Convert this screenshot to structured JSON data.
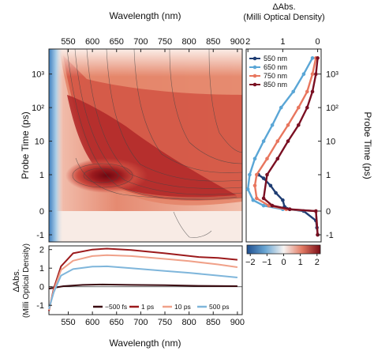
{
  "chart_data": [
    {
      "type": "heatmap",
      "xlabel": "Wavelength (nm)",
      "ylabel": "Probe Time (ps)",
      "x_ticks": [
        "550",
        "600",
        "650",
        "700",
        "750",
        "800",
        "850",
        "900"
      ],
      "x_tick_values": [
        550,
        600,
        650,
        700,
        750,
        800,
        850,
        900
      ],
      "xlim": [
        510,
        910
      ],
      "y_scale": "linear below 1 ps, log above",
      "y_ticks": [
        "-1",
        "0",
        "1",
        "10",
        "10²",
        "10³"
      ],
      "y_tick_values": [
        -1,
        0,
        1,
        10,
        100,
        1000
      ],
      "ylim": [
        -1.2,
        5000
      ],
      "colorscale": {
        "name": "red-white-blue",
        "negative": "#2166ac",
        "zero": "#f7f3ee",
        "positive": "#8b0d14"
      },
      "peak_region": {
        "wavelength_nm": 635,
        "time_ps": 1,
        "value_mOD": 2
      },
      "contour_lines": true,
      "x_axis_position": "top"
    },
    {
      "type": "line",
      "title": "ΔAbs.",
      "xlabel": "(Milli Optical Density)",
      "ylabel": "Probe Time (ps)",
      "x_ticks": [
        "2",
        "1",
        "0"
      ],
      "x_tick_values": [
        2,
        1,
        0
      ],
      "xlim": [
        2.05,
        -0.1
      ],
      "y_ticks": [
        "-1",
        "0",
        "1",
        "10",
        "10²",
        "10³"
      ],
      "y_tick_values": [
        -1,
        0,
        1,
        10,
        100,
        1000
      ],
      "legend_position": "top-left",
      "series": [
        {
          "name": "550 nm",
          "color": "#1f3d73",
          "points": [
            [
              0.0,
              -1.0
            ],
            [
              0.02,
              -0.7
            ],
            [
              0.05,
              -0.4
            ],
            [
              0.4,
              0.0
            ],
            [
              0.8,
              0.05
            ],
            [
              0.95,
              0.12
            ],
            [
              1.0,
              0.3
            ],
            [
              1.2,
              0.5
            ],
            [
              1.35,
              0.7
            ],
            [
              1.55,
              0.9
            ],
            [
              1.7,
              1.0
            ]
          ]
        },
        {
          "name": "650 nm",
          "color": "#5aa6d6",
          "points": [
            [
              0.0,
              -1.0
            ],
            [
              0.05,
              0.0
            ],
            [
              1.0,
              0.05
            ],
            [
              1.55,
              0.15
            ],
            [
              1.85,
              0.3
            ],
            [
              2.0,
              0.6
            ],
            [
              1.95,
              1.0
            ],
            [
              1.8,
              3
            ],
            [
              1.55,
              10
            ],
            [
              1.3,
              30
            ],
            [
              1.05,
              100
            ],
            [
              0.7,
              300
            ],
            [
              0.4,
              1000
            ],
            [
              0.15,
              3000
            ]
          ]
        },
        {
          "name": "750 nm",
          "color": "#e8765e",
          "points": [
            [
              0.0,
              -1.0
            ],
            [
              0.05,
              0.0
            ],
            [
              0.9,
              0.05
            ],
            [
              1.4,
              0.15
            ],
            [
              1.75,
              0.35
            ],
            [
              1.8,
              0.7
            ],
            [
              1.75,
              1.0
            ],
            [
              1.45,
              3
            ],
            [
              1.15,
              10
            ],
            [
              0.85,
              30
            ],
            [
              0.55,
              100
            ],
            [
              0.3,
              300
            ],
            [
              0.15,
              1000
            ],
            [
              0.05,
              3000
            ]
          ]
        },
        {
          "name": "850 nm",
          "color": "#7a0f22",
          "points": [
            [
              0.0,
              -1.0
            ],
            [
              0.05,
              0.0
            ],
            [
              0.8,
              0.05
            ],
            [
              1.3,
              0.15
            ],
            [
              1.55,
              0.35
            ],
            [
              1.45,
              1.0
            ],
            [
              1.15,
              3
            ],
            [
              0.85,
              10
            ],
            [
              0.55,
              30
            ],
            [
              0.3,
              100
            ],
            [
              0.15,
              300
            ],
            [
              0.05,
              1000
            ],
            [
              0.0,
              3000
            ]
          ]
        }
      ]
    },
    {
      "type": "line",
      "xlabel": "Wavelength (nm)",
      "ylabel": "ΔAbs.",
      "ylabel2": "(Milli Optical Density)",
      "x_ticks": [
        "550",
        "600",
        "650",
        "700",
        "750",
        "800",
        "850",
        "900"
      ],
      "x_tick_values": [
        550,
        600,
        650,
        700,
        750,
        800,
        850,
        900
      ],
      "xlim": [
        510,
        910
      ],
      "y_ticks": [
        "-1",
        "0",
        "1",
        "2"
      ],
      "y_tick_values": [
        -1,
        0,
        1,
        2
      ],
      "ylim": [
        -1.5,
        2.2
      ],
      "legend_position": "bottom",
      "series": [
        {
          "name": "−500 fs",
          "color": "#3a0a10",
          "points": [
            [
              510,
              -0.1
            ],
            [
              540,
              0.03
            ],
            [
              580,
              0.1
            ],
            [
              620,
              0.12
            ],
            [
              680,
              0.1
            ],
            [
              750,
              0.08
            ],
            [
              820,
              0.05
            ],
            [
              900,
              0.03
            ]
          ]
        },
        {
          "name": "1 ps",
          "color": "#9c1a1c",
          "points": [
            [
              510,
              -1.3
            ],
            [
              520,
              -0.1
            ],
            [
              535,
              1.1
            ],
            [
              560,
              1.8
            ],
            [
              600,
              2.0
            ],
            [
              630,
              2.05
            ],
            [
              680,
              1.98
            ],
            [
              750,
              1.8
            ],
            [
              820,
              1.6
            ],
            [
              860,
              1.55
            ],
            [
              900,
              1.45
            ]
          ]
        },
        {
          "name": "10 ps",
          "color": "#f0a189",
          "points": [
            [
              510,
              -1.25
            ],
            [
              520,
              -0.2
            ],
            [
              535,
              0.9
            ],
            [
              560,
              1.4
            ],
            [
              600,
              1.65
            ],
            [
              630,
              1.7
            ],
            [
              680,
              1.65
            ],
            [
              750,
              1.5
            ],
            [
              800,
              1.38
            ],
            [
              860,
              1.2
            ],
            [
              900,
              1.05
            ]
          ]
        },
        {
          "name": "500 ps",
          "color": "#7fb6db",
          "points": [
            [
              510,
              -1.2
            ],
            [
              520,
              -0.3
            ],
            [
              535,
              0.6
            ],
            [
              560,
              0.95
            ],
            [
              600,
              1.08
            ],
            [
              630,
              1.1
            ],
            [
              680,
              1.0
            ],
            [
              750,
              0.85
            ],
            [
              800,
              0.75
            ],
            [
              860,
              0.6
            ],
            [
              900,
              0.5
            ]
          ]
        }
      ]
    },
    {
      "type": "colorbar",
      "ticks": [
        "−2",
        "−1",
        "0",
        "1",
        "2"
      ],
      "tick_values": [
        -2,
        -1,
        0,
        1,
        2
      ],
      "range": [
        -2.2,
        2.2
      ]
    }
  ]
}
